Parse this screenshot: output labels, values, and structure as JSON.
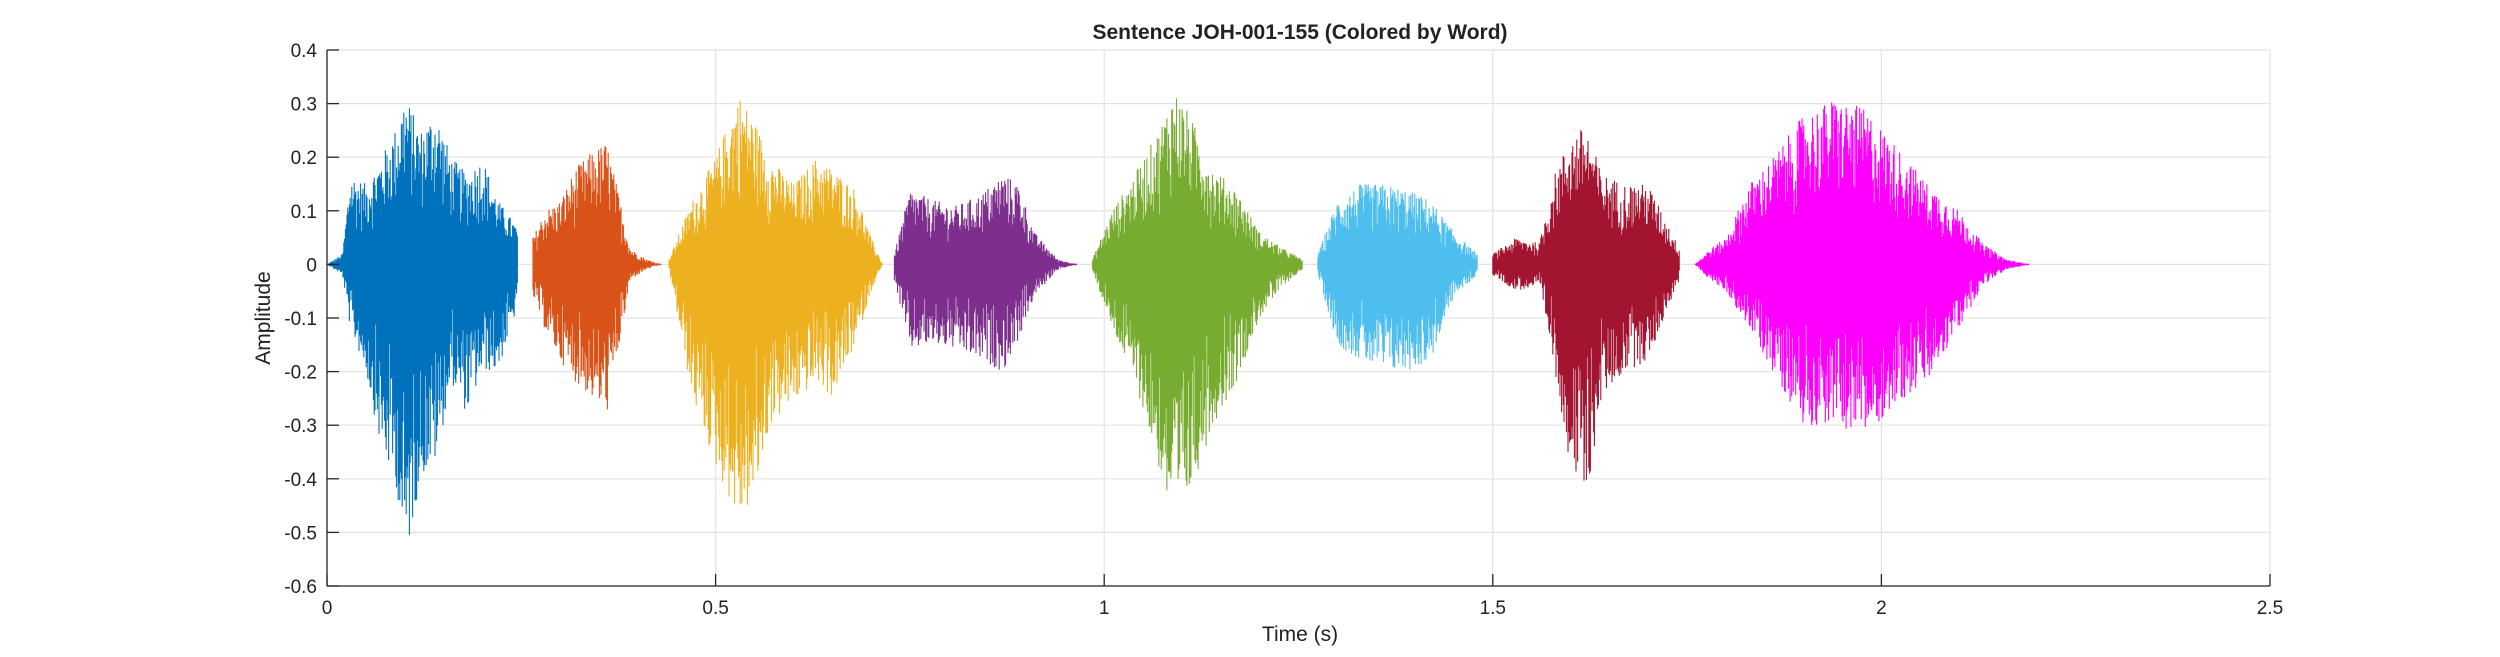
{
  "chart_data": {
    "type": "line",
    "title": "Sentence JOH-001-155 (Colored by Word)",
    "xlabel": "Time (s)",
    "ylabel": "Amplitude",
    "xlim": [
      0,
      2.5
    ],
    "ylim": [
      -0.6,
      0.4
    ],
    "grid": true,
    "x_ticks": [
      0,
      0.5,
      1,
      1.5,
      2,
      2.5
    ],
    "x_tick_labels": [
      "0",
      "0.5",
      "1",
      "1.5",
      "2",
      "2.5"
    ],
    "y_ticks": [
      0.4,
      0.3,
      0.2,
      0.1,
      0,
      -0.1,
      -0.2,
      -0.3,
      -0.4,
      -0.5,
      -0.6
    ],
    "y_tick_labels": [
      "0.4",
      "0.3",
      "0.2",
      "0.1",
      "0",
      "-0.1",
      "-0.2",
      "-0.3",
      "-0.4",
      "-0.5",
      "-0.6"
    ],
    "series": [
      {
        "color": "#0072BD",
        "x_range": [
          0.0,
          0.245
        ],
        "envelope": [
          [
            0.0,
            0.0,
            0.0
          ],
          [
            0.02,
            0.02,
            -0.02
          ],
          [
            0.03,
            0.17,
            -0.12
          ],
          [
            0.05,
            0.15,
            -0.2
          ],
          [
            0.07,
            0.2,
            -0.35
          ],
          [
            0.09,
            0.26,
            -0.42
          ],
          [
            0.1,
            0.32,
            -0.57
          ],
          [
            0.12,
            0.25,
            -0.4
          ],
          [
            0.14,
            0.29,
            -0.37
          ],
          [
            0.16,
            0.2,
            -0.22
          ],
          [
            0.18,
            0.17,
            -0.28
          ],
          [
            0.2,
            0.2,
            -0.2
          ],
          [
            0.22,
            0.12,
            -0.2
          ],
          [
            0.245,
            0.07,
            -0.08
          ]
        ]
      },
      {
        "color": "#D95319",
        "x_range": [
          0.265,
          0.43
        ],
        "envelope": [
          [
            0.265,
            0.05,
            -0.06
          ],
          [
            0.28,
            0.1,
            -0.12
          ],
          [
            0.3,
            0.12,
            -0.18
          ],
          [
            0.32,
            0.18,
            -0.22
          ],
          [
            0.34,
            0.21,
            -0.25
          ],
          [
            0.36,
            0.23,
            -0.28
          ],
          [
            0.38,
            0.1,
            -0.12
          ],
          [
            0.39,
            0.03,
            -0.03
          ],
          [
            0.41,
            0.01,
            -0.01
          ],
          [
            0.43,
            0.0,
            0.0
          ]
        ]
      },
      {
        "color": "#EDB120",
        "x_range": [
          0.44,
          0.715
        ],
        "envelope": [
          [
            0.44,
            0.01,
            -0.01
          ],
          [
            0.47,
            0.12,
            -0.25
          ],
          [
            0.5,
            0.2,
            -0.38
          ],
          [
            0.53,
            0.32,
            -0.48
          ],
          [
            0.55,
            0.27,
            -0.44
          ],
          [
            0.57,
            0.2,
            -0.3
          ],
          [
            0.6,
            0.15,
            -0.26
          ],
          [
            0.63,
            0.2,
            -0.22
          ],
          [
            0.65,
            0.18,
            -0.25
          ],
          [
            0.68,
            0.14,
            -0.15
          ],
          [
            0.7,
            0.05,
            -0.05
          ],
          [
            0.715,
            0.0,
            0.0
          ]
        ]
      },
      {
        "color": "#7E2F8E",
        "x_range": [
          0.73,
          0.965
        ],
        "envelope": [
          [
            0.73,
            0.02,
            -0.03
          ],
          [
            0.75,
            0.14,
            -0.16
          ],
          [
            0.78,
            0.12,
            -0.15
          ],
          [
            0.81,
            0.11,
            -0.16
          ],
          [
            0.84,
            0.13,
            -0.18
          ],
          [
            0.87,
            0.17,
            -0.2
          ],
          [
            0.89,
            0.15,
            -0.14
          ],
          [
            0.91,
            0.06,
            -0.06
          ],
          [
            0.94,
            0.01,
            -0.01
          ],
          [
            0.965,
            0.0,
            0.0
          ]
        ]
      },
      {
        "color": "#77AC30",
        "x_range": [
          0.985,
          1.255
        ],
        "envelope": [
          [
            0.985,
            0.01,
            -0.01
          ],
          [
            1.01,
            0.1,
            -0.12
          ],
          [
            1.04,
            0.17,
            -0.22
          ],
          [
            1.07,
            0.25,
            -0.38
          ],
          [
            1.09,
            0.33,
            -0.5
          ],
          [
            1.11,
            0.28,
            -0.43
          ],
          [
            1.14,
            0.18,
            -0.3
          ],
          [
            1.17,
            0.14,
            -0.22
          ],
          [
            1.2,
            0.06,
            -0.1
          ],
          [
            1.23,
            0.03,
            -0.04
          ],
          [
            1.255,
            0.01,
            -0.01
          ]
        ]
      },
      {
        "color": "#4DBEEE",
        "x_range": [
          1.275,
          1.48
        ],
        "envelope": [
          [
            1.275,
            0.02,
            -0.02
          ],
          [
            1.3,
            0.12,
            -0.15
          ],
          [
            1.33,
            0.15,
            -0.18
          ],
          [
            1.36,
            0.15,
            -0.2
          ],
          [
            1.39,
            0.14,
            -0.2
          ],
          [
            1.42,
            0.12,
            -0.18
          ],
          [
            1.45,
            0.06,
            -0.06
          ],
          [
            1.48,
            0.02,
            -0.02
          ]
        ]
      },
      {
        "color": "#A2142F",
        "x_range": [
          1.5,
          1.74
        ],
        "envelope": [
          [
            1.5,
            0.02,
            -0.02
          ],
          [
            1.53,
            0.05,
            -0.05
          ],
          [
            1.56,
            0.04,
            -0.04
          ],
          [
            1.58,
            0.17,
            -0.2
          ],
          [
            1.6,
            0.24,
            -0.38
          ],
          [
            1.62,
            0.26,
            -0.45
          ],
          [
            1.64,
            0.17,
            -0.25
          ],
          [
            1.67,
            0.15,
            -0.2
          ],
          [
            1.7,
            0.15,
            -0.18
          ],
          [
            1.72,
            0.09,
            -0.1
          ],
          [
            1.74,
            0.03,
            -0.03
          ]
        ]
      },
      {
        "color": "#FF00FF",
        "x_range": [
          1.76,
          2.19
        ],
        "envelope": [
          [
            1.76,
            0.0,
            0.0
          ],
          [
            1.78,
            0.03,
            -0.03
          ],
          [
            1.8,
            0.05,
            -0.05
          ],
          [
            1.83,
            0.15,
            -0.12
          ],
          [
            1.86,
            0.2,
            -0.2
          ],
          [
            1.9,
            0.28,
            -0.3
          ],
          [
            1.94,
            0.31,
            -0.3
          ],
          [
            1.98,
            0.29,
            -0.32
          ],
          [
            2.02,
            0.22,
            -0.26
          ],
          [
            2.06,
            0.15,
            -0.22
          ],
          [
            2.1,
            0.1,
            -0.12
          ],
          [
            2.13,
            0.04,
            -0.04
          ],
          [
            2.16,
            0.01,
            -0.01
          ],
          [
            2.19,
            0.0,
            0.0
          ]
        ]
      }
    ]
  }
}
